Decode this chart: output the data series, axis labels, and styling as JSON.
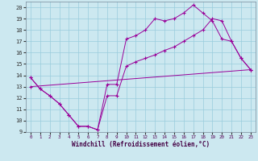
{
  "xlabel": "Windchill (Refroidissement éolien,°C)",
  "bg_color": "#cce8f0",
  "grid_color": "#99ccdd",
  "line_color": "#990099",
  "xlim": [
    -0.5,
    23.5
  ],
  "ylim": [
    9,
    20.5
  ],
  "yticks": [
    9,
    10,
    11,
    12,
    13,
    14,
    15,
    16,
    17,
    18,
    19,
    20
  ],
  "xticks": [
    0,
    1,
    2,
    3,
    4,
    5,
    6,
    7,
    8,
    9,
    10,
    11,
    12,
    13,
    14,
    15,
    16,
    17,
    18,
    19,
    20,
    21,
    22,
    23
  ],
  "series": [
    {
      "x": [
        0,
        1,
        2,
        3,
        4,
        5,
        6,
        7,
        8,
        9,
        10,
        11,
        12,
        13,
        14,
        15,
        16,
        17,
        18,
        19,
        20,
        21,
        22,
        23
      ],
      "y": [
        13.8,
        12.8,
        12.2,
        11.5,
        10.5,
        9.5,
        9.5,
        9.2,
        13.2,
        13.2,
        17.2,
        17.5,
        18.0,
        19.0,
        18.8,
        19.0,
        19.5,
        20.2,
        19.5,
        18.8,
        17.2,
        17.0,
        15.5,
        14.5
      ]
    },
    {
      "x": [
        0,
        1,
        2,
        3,
        4,
        5,
        6,
        7,
        8,
        9,
        10,
        11,
        12,
        13,
        14,
        15,
        16,
        17,
        18,
        19,
        20,
        21,
        22,
        23
      ],
      "y": [
        13.8,
        12.8,
        12.2,
        11.5,
        10.5,
        9.5,
        9.5,
        9.2,
        12.2,
        12.2,
        14.8,
        15.2,
        15.5,
        15.8,
        16.2,
        16.5,
        17.0,
        17.5,
        18.0,
        19.0,
        18.8,
        17.0,
        15.5,
        14.5
      ]
    },
    {
      "x": [
        0,
        23
      ],
      "y": [
        13.0,
        14.5
      ]
    }
  ]
}
